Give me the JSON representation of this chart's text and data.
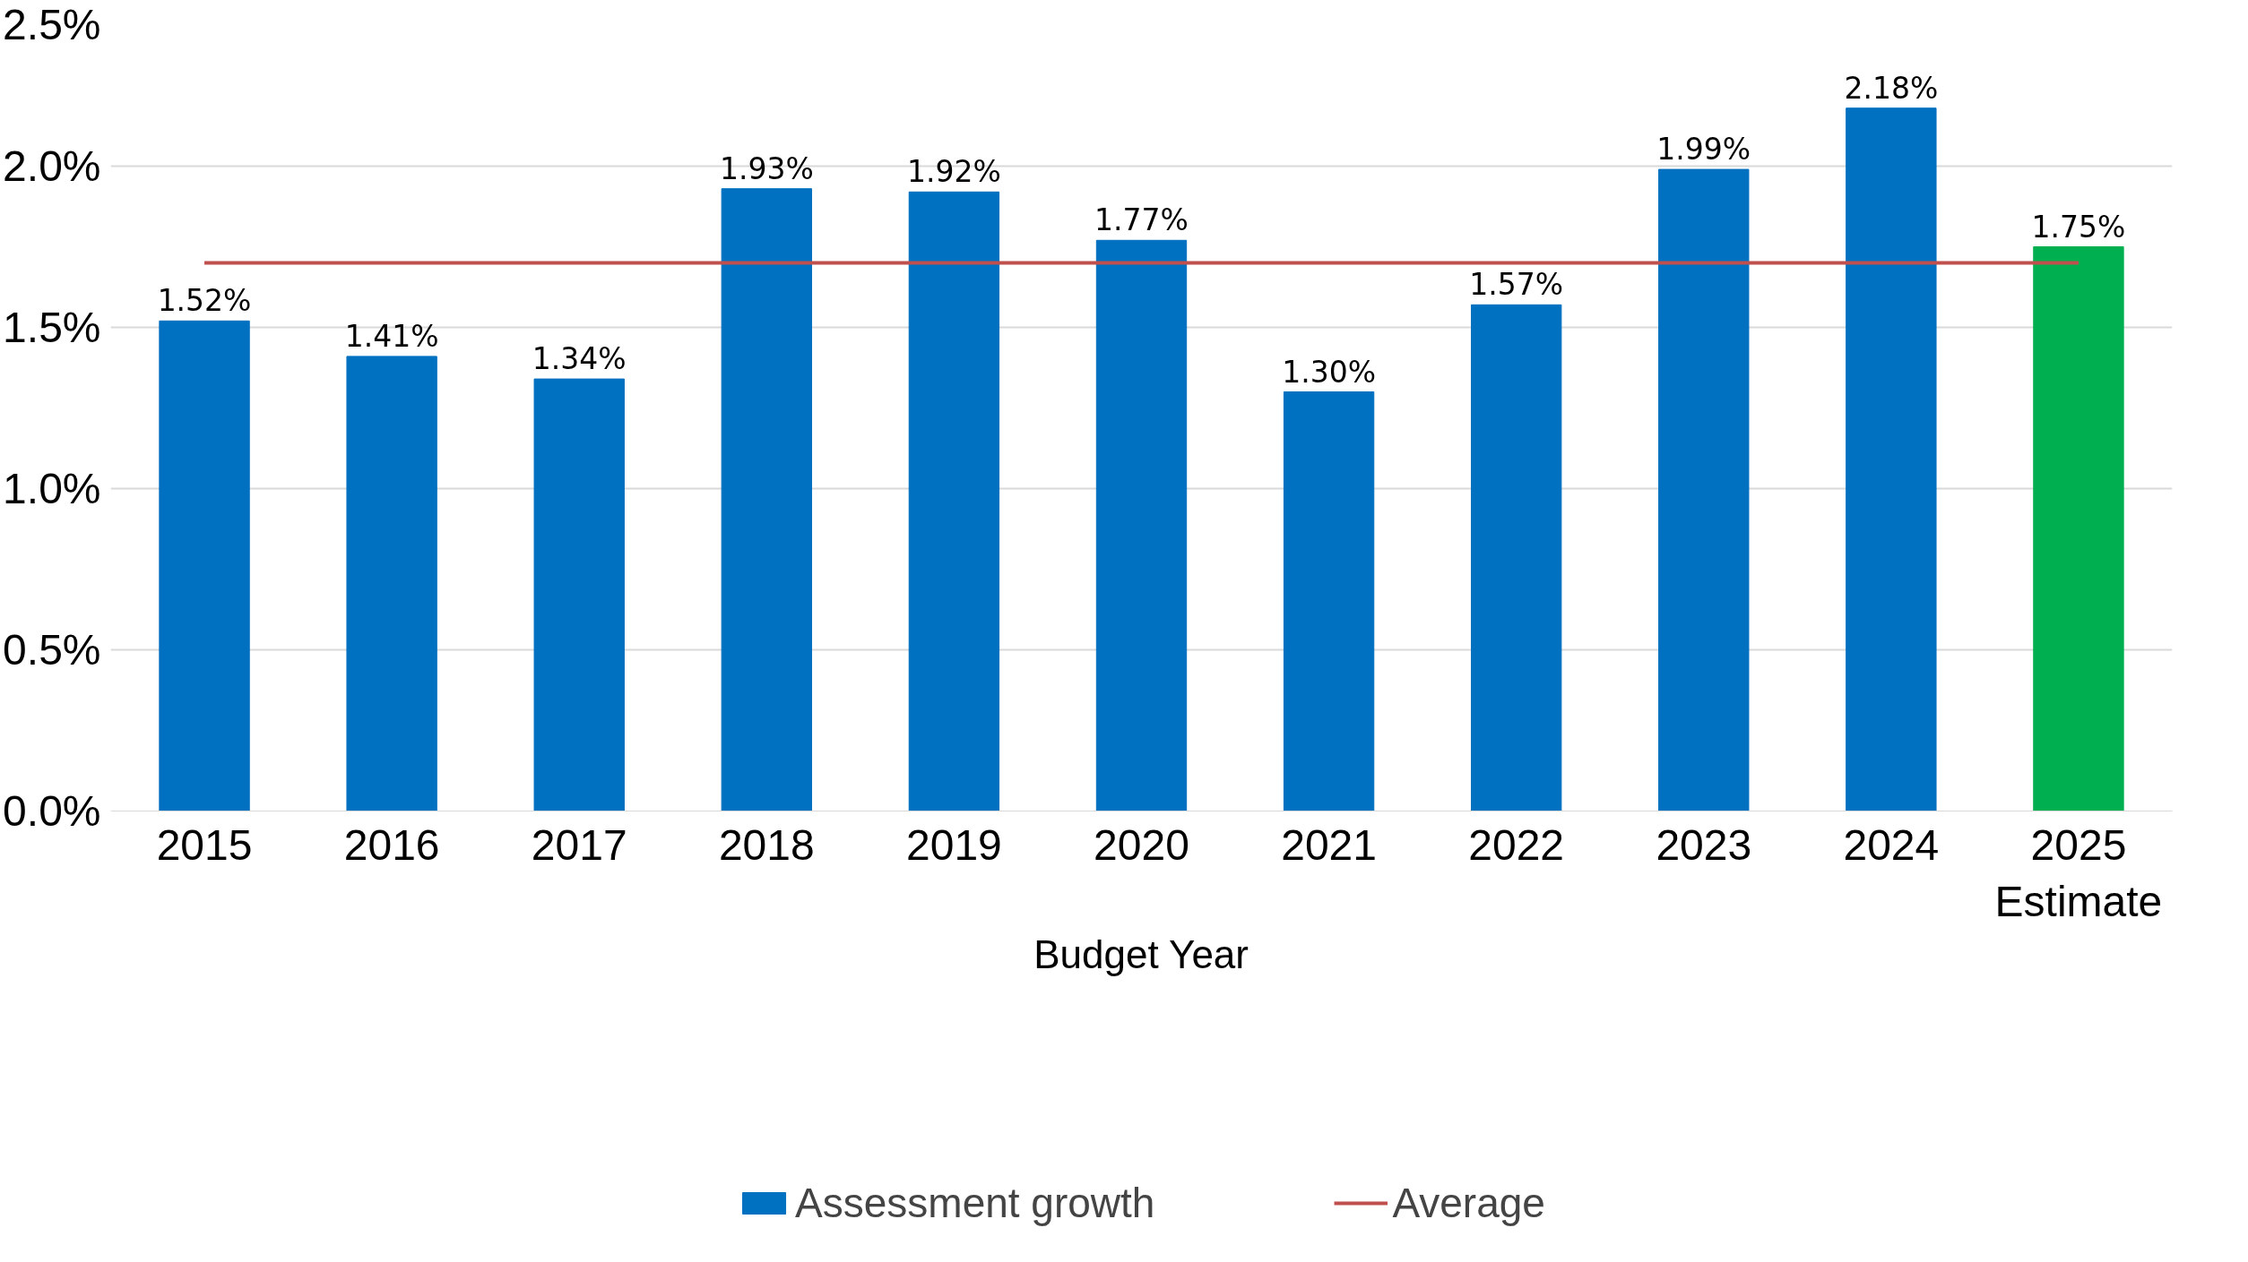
{
  "chart_data": {
    "type": "bar",
    "xlabel": "Budget Year",
    "categories": [
      "2015",
      "2016",
      "2017",
      "2018",
      "2019",
      "2020",
      "2021",
      "2022",
      "2023",
      "2024",
      "2025\nEstimate"
    ],
    "series": [
      {
        "name": "Assessment growth",
        "values": [
          1.52,
          1.41,
          1.34,
          1.93,
          1.92,
          1.77,
          1.3,
          1.57,
          1.99,
          2.18,
          1.75
        ],
        "colors": [
          "#0070c0",
          "#0070c0",
          "#0070c0",
          "#0070c0",
          "#0070c0",
          "#0070c0",
          "#0070c0",
          "#0070c0",
          "#0070c0",
          "#0070c0",
          "#00b050"
        ],
        "value_labels": [
          "1.52%",
          "1.41%",
          "1.34%",
          "1.93%",
          "1.92%",
          "1.77%",
          "1.30%",
          "1.57%",
          "1.99%",
          "2.18%",
          "1.75%"
        ]
      },
      {
        "name": "Average",
        "type": "line",
        "color": "#c0504d",
        "values": [
          1.7,
          1.7,
          1.7,
          1.7,
          1.7,
          1.7,
          1.7,
          1.7,
          1.7,
          1.7,
          1.7
        ]
      }
    ],
    "ylim": [
      0,
      2.5
    ],
    "yticks": [
      {
        "value": 0,
        "label": "0.0%"
      },
      {
        "value": 0.5,
        "label": "0.5%"
      },
      {
        "value": 1.0,
        "label": "1.0%"
      },
      {
        "value": 1.5,
        "label": "1.5%"
      },
      {
        "value": 2.0,
        "label": "2.0%"
      },
      {
        "value": 2.5,
        "label": "2.5%"
      }
    ],
    "grid": "y",
    "legend": "bottom"
  }
}
